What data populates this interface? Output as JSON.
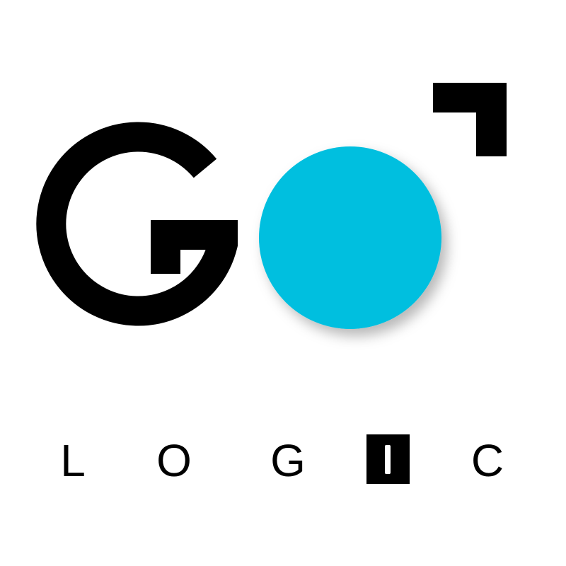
{
  "logo": {
    "primary_word": "GO",
    "secondary_word": "LOGIC",
    "letters": [
      "L",
      "O",
      "G",
      "I",
      "C"
    ],
    "colors": {
      "background": "#ffffff",
      "ink": "#000000",
      "accent": "#06bfdf"
    },
    "icons": [
      "corner-bracket-icon",
      "cyan-circle-icon"
    ]
  }
}
